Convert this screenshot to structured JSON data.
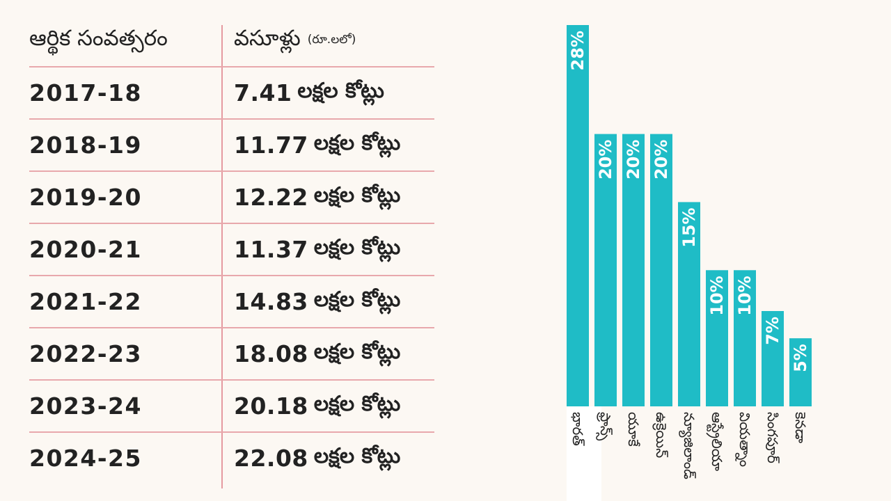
{
  "table": {
    "header": {
      "year_label": "ఆర్థిక సంవత్సరం",
      "collections_label": "వసూళ్లు",
      "unit_note": "(రూ.లలో)"
    },
    "unit_suffix": "లక్షల కోట్లు",
    "rows": [
      {
        "year": "2017-18",
        "amount": "7.41"
      },
      {
        "year": "2018-19",
        "amount": "11.77"
      },
      {
        "year": "2019-20",
        "amount": "12.22"
      },
      {
        "year": "2020-21",
        "amount": "11.37"
      },
      {
        "year": "2021-22",
        "amount": "14.83"
      },
      {
        "year": "2022-23",
        "amount": "18.08"
      },
      {
        "year": "2023-24",
        "amount": "20.18"
      },
      {
        "year": "2024-25",
        "amount": "22.08"
      }
    ]
  },
  "chart_data": {
    "type": "bar",
    "orientation": "vertical",
    "title": "",
    "xlabel": "",
    "ylabel": "",
    "ylim": [
      0,
      28
    ],
    "categories": [
      "భారత్",
      "ఫ్రాన్స్",
      "యూకే",
      "ఉక్రెయిన్",
      "న్యూజిలాండ్",
      "ఆస్ట్రేలియా",
      "వియత్నాం",
      "సింగపూర్",
      "కెనడా"
    ],
    "values": [
      28,
      20,
      20,
      20,
      15,
      10,
      10,
      7,
      5
    ],
    "value_labels": [
      "28%",
      "20%",
      "20%",
      "20%",
      "15%",
      "10%",
      "10%",
      "7%",
      "5%"
    ],
    "highlight_index": 0,
    "colors": {
      "bar": "#1fbcc6",
      "label": "#ffffff",
      "highlight_column": "#ffffff",
      "category_text": "#222222"
    }
  }
}
